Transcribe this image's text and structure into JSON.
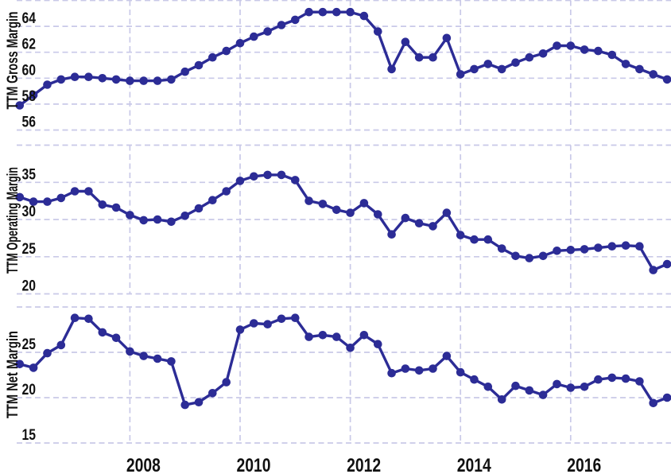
{
  "figure": {
    "background": "#ffffff",
    "series_color": "#2c2c96",
    "gridline_color": "#c9c9e8",
    "text_color": "#111111"
  },
  "x_axis": {
    "tick_years": [
      2008,
      2010,
      2012,
      2014,
      2016
    ],
    "tick_labels": [
      "2008",
      "2010",
      "2012",
      "2014",
      "2016"
    ],
    "range": [
      2006,
      2017.75
    ]
  },
  "chart_data": [
    {
      "type": "line",
      "ylabel": "TTM Gross Margin",
      "ylim": [
        56,
        66
      ],
      "yticks": [
        56,
        58,
        60,
        62,
        64
      ],
      "gridlines": [
        56,
        58,
        60,
        62,
        64,
        66
      ],
      "grid": true,
      "legend": "none",
      "marker": "circle",
      "x": [
        2006,
        2006.25,
        2006.5,
        2006.75,
        2007,
        2007.25,
        2007.5,
        2007.75,
        2008,
        2008.25,
        2008.5,
        2008.75,
        2009,
        2009.25,
        2009.5,
        2009.75,
        2010,
        2010.25,
        2010.5,
        2010.75,
        2011,
        2011.25,
        2011.5,
        2011.75,
        2012,
        2012.25,
        2012.5,
        2012.75,
        2013,
        2013.25,
        2013.5,
        2013.75,
        2014,
        2014.25,
        2014.5,
        2014.75,
        2015,
        2015.25,
        2015.5,
        2015.75,
        2016,
        2016.25,
        2016.5,
        2016.75,
        2017,
        2017.25,
        2017.5,
        2017.75
      ],
      "values": [
        57.9,
        58.7,
        59.5,
        59.9,
        60.1,
        60.1,
        60.0,
        59.9,
        59.8,
        59.8,
        59.8,
        59.9,
        60.5,
        61.0,
        61.6,
        62.1,
        62.7,
        63.2,
        63.6,
        64.1,
        64.5,
        65.1,
        65.1,
        65.1,
        65.1,
        64.8,
        63.6,
        60.7,
        62.8,
        61.6,
        61.6,
        63.1,
        60.3,
        60.7,
        61.1,
        60.7,
        61.2,
        61.6,
        61.9,
        62.5,
        62.5,
        62.2,
        62.1,
        61.8,
        61.1,
        60.7,
        60.3,
        59.9
      ]
    },
    {
      "type": "line",
      "ylabel": "TTM Operating Margin",
      "ylim": [
        20,
        40
      ],
      "yticks": [
        20,
        25,
        30,
        35
      ],
      "gridlines": [
        20,
        25,
        30,
        35,
        40
      ],
      "grid": true,
      "legend": "none",
      "marker": "circle",
      "x": [
        2006,
        2006.25,
        2006.5,
        2006.75,
        2007,
        2007.25,
        2007.5,
        2007.75,
        2008,
        2008.25,
        2008.5,
        2008.75,
        2009,
        2009.25,
        2009.5,
        2009.75,
        2010,
        2010.25,
        2010.5,
        2010.75,
        2011,
        2011.25,
        2011.5,
        2011.75,
        2012,
        2012.25,
        2012.5,
        2012.75,
        2013,
        2013.25,
        2013.5,
        2013.75,
        2014,
        2014.25,
        2014.5,
        2014.75,
        2015,
        2015.25,
        2015.5,
        2015.75,
        2016,
        2016.25,
        2016.5,
        2016.75,
        2017,
        2017.25,
        2017.5,
        2017.75
      ],
      "values": [
        33.0,
        32.4,
        32.4,
        32.9,
        33.8,
        33.8,
        32.0,
        31.6,
        30.6,
        29.9,
        30.0,
        29.7,
        30.5,
        31.5,
        32.6,
        33.8,
        35.2,
        35.8,
        36.0,
        36.0,
        35.3,
        32.5,
        32.1,
        31.3,
        30.9,
        32.2,
        30.7,
        28.0,
        30.2,
        29.5,
        29.1,
        30.9,
        27.9,
        27.3,
        27.3,
        26.1,
        25.1,
        24.8,
        25.1,
        25.8,
        25.9,
        26.0,
        26.2,
        26.4,
        26.5,
        26.4,
        23.2,
        24.0
      ]
    },
    {
      "type": "line",
      "ylabel": "TTM Net Margin",
      "ylim": [
        15,
        30
      ],
      "yticks": [
        15,
        20,
        25
      ],
      "gridlines": [
        15,
        20,
        25,
        30
      ],
      "grid": true,
      "legend": "none",
      "marker": "circle",
      "x": [
        2006,
        2006.25,
        2006.5,
        2006.75,
        2007,
        2007.25,
        2007.5,
        2007.75,
        2008,
        2008.25,
        2008.5,
        2008.75,
        2009,
        2009.25,
        2009.5,
        2009.75,
        2010,
        2010.25,
        2010.5,
        2010.75,
        2011,
        2011.25,
        2011.5,
        2011.75,
        2012,
        2012.25,
        2012.5,
        2012.75,
        2013,
        2013.25,
        2013.5,
        2013.75,
        2014,
        2014.25,
        2014.5,
        2014.75,
        2015,
        2015.25,
        2015.5,
        2015.75,
        2016,
        2016.25,
        2016.5,
        2016.75,
        2017,
        2017.25,
        2017.5,
        2017.75
      ],
      "values": [
        23.7,
        23.3,
        24.9,
        25.8,
        28.8,
        28.7,
        27.2,
        26.6,
        25.1,
        24.6,
        24.3,
        24.0,
        19.2,
        19.5,
        20.5,
        21.7,
        27.5,
        28.2,
        28.1,
        28.7,
        28.8,
        26.7,
        26.9,
        26.7,
        25.5,
        26.9,
        25.9,
        22.7,
        23.2,
        23.0,
        23.2,
        24.6,
        22.8,
        22.0,
        21.2,
        19.8,
        21.3,
        20.8,
        20.3,
        21.5,
        21.1,
        21.2,
        22.0,
        22.2,
        22.1,
        21.8,
        19.4,
        20.0
      ]
    }
  ]
}
